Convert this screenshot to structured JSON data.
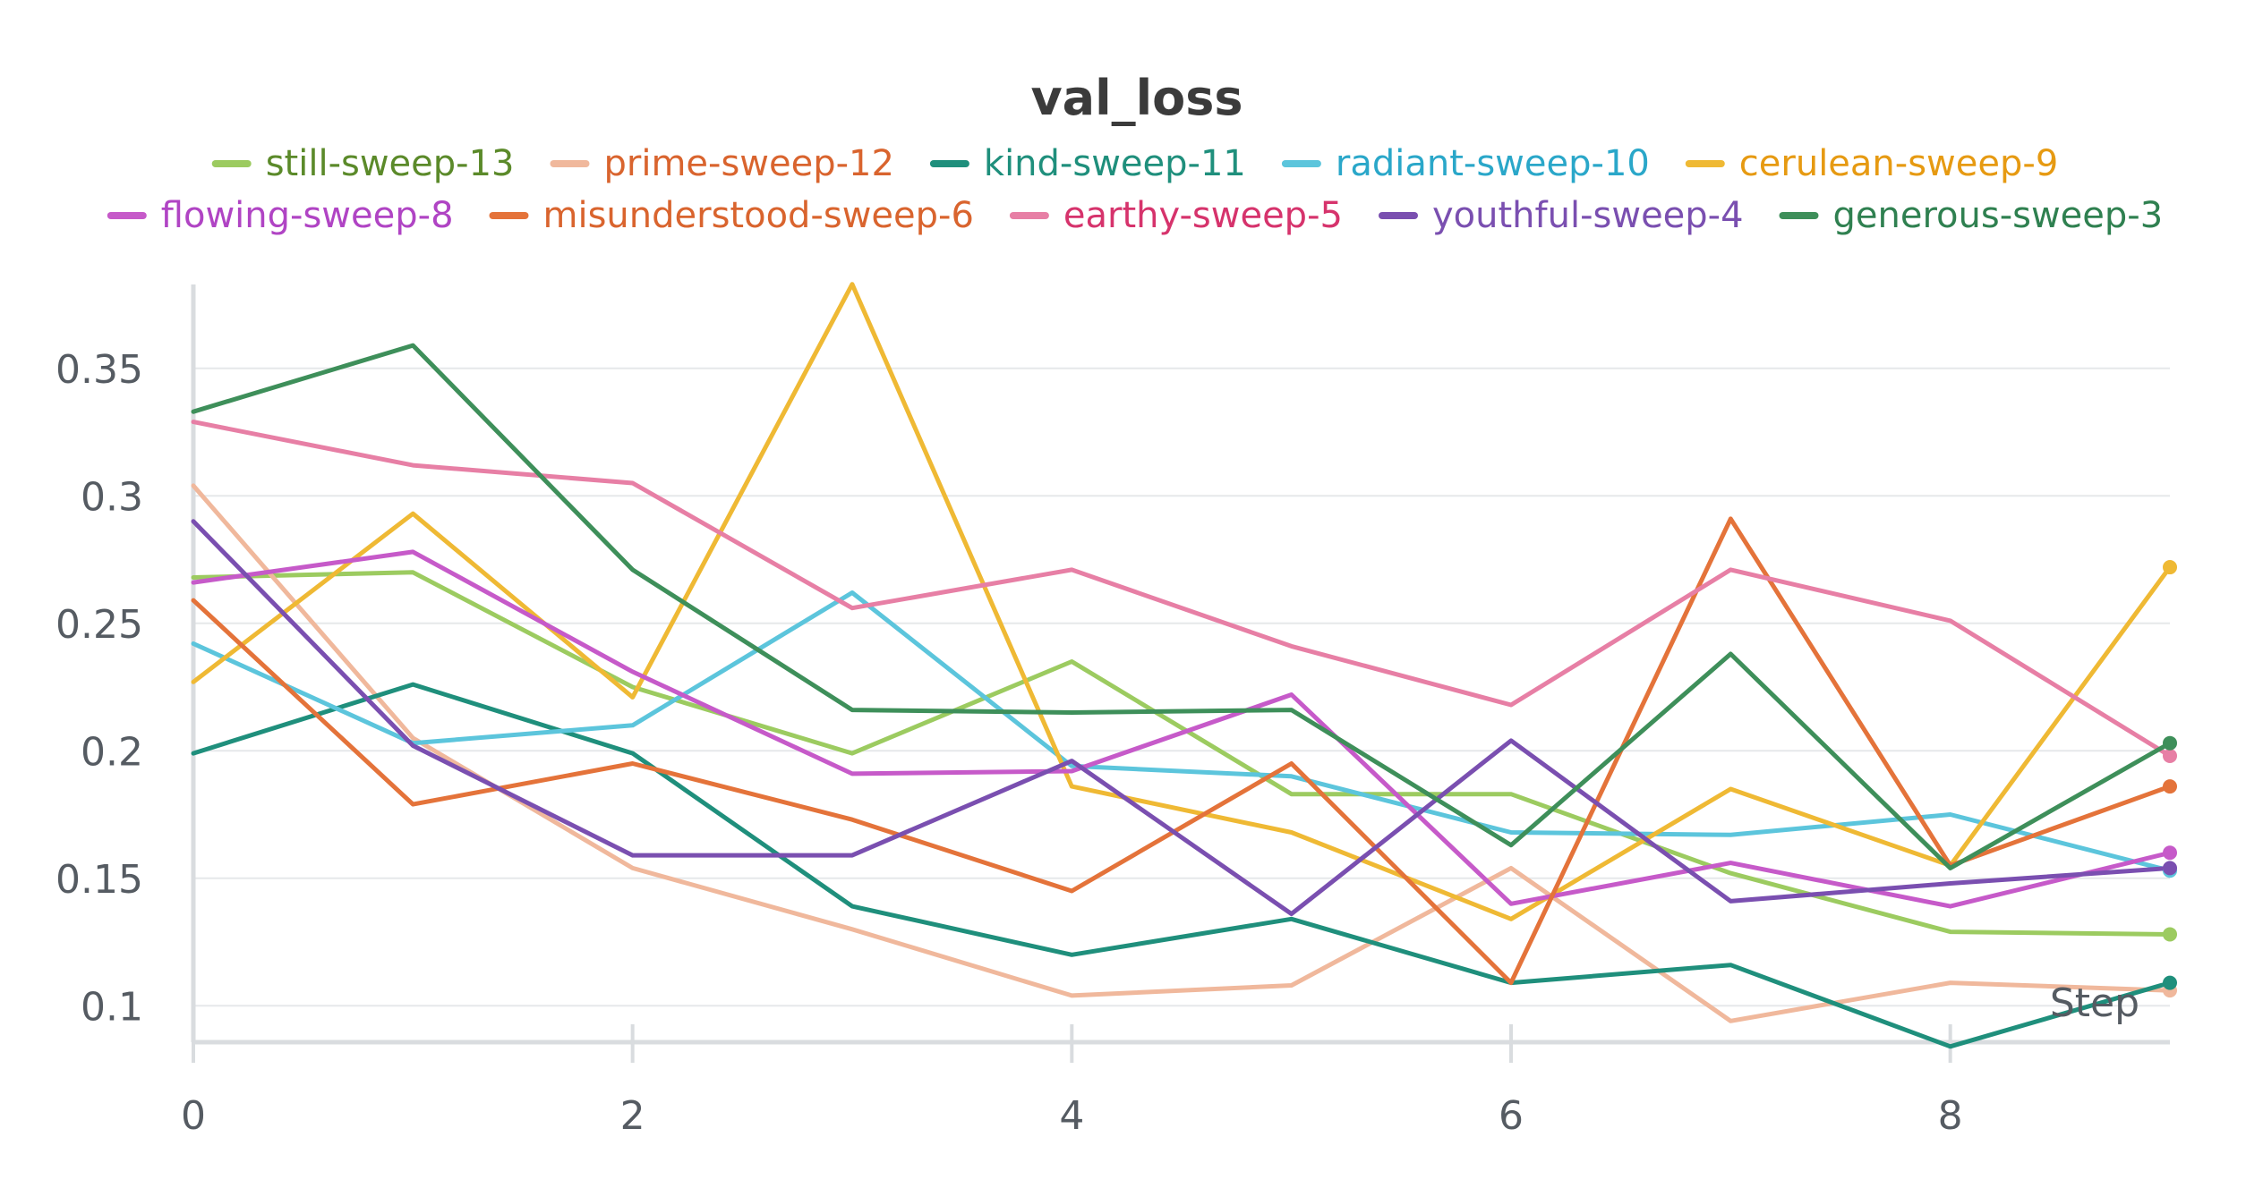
{
  "chart_data": {
    "type": "line",
    "title": "val_loss",
    "xlabel": "Step",
    "ylabel": "",
    "x": [
      0,
      1,
      2,
      3,
      4,
      5,
      6,
      7,
      8,
      9
    ],
    "xlim": [
      0,
      9
    ],
    "ylim": [
      0.085,
      0.385
    ],
    "x_ticks": [
      0,
      2,
      4,
      6,
      8
    ],
    "y_ticks": [
      0.1,
      0.15,
      0.2,
      0.25,
      0.3,
      0.35
    ],
    "y_tick_labels": [
      "0.1",
      "0.15",
      "0.2",
      "0.25",
      "0.3",
      "0.35"
    ],
    "grid": "horizontal",
    "legend_position": "top",
    "series": [
      {
        "name": "still-sweep-13",
        "color": "#9ccb60",
        "text_color": "#5b8a2a",
        "values": [
          0.268,
          0.27,
          0.225,
          0.199,
          0.235,
          0.183,
          0.183,
          0.152,
          0.129,
          0.128
        ]
      },
      {
        "name": "prime-sweep-12",
        "color": "#f0b89c",
        "text_color": "#d9642e",
        "values": [
          0.304,
          0.205,
          0.154,
          0.13,
          0.104,
          0.108,
          0.154,
          0.094,
          0.109,
          0.106
        ]
      },
      {
        "name": "kind-sweep-11",
        "color": "#1f8f7c",
        "text_color": "#1f8f7c",
        "values": [
          0.199,
          0.226,
          0.199,
          0.139,
          0.12,
          0.134,
          0.109,
          0.116,
          0.084,
          0.109
        ]
      },
      {
        "name": "radiant-sweep-10",
        "color": "#5cc5dc",
        "text_color": "#2aa7c9",
        "values": [
          0.242,
          0.203,
          0.21,
          0.262,
          0.194,
          0.19,
          0.168,
          0.167,
          0.175,
          0.153
        ]
      },
      {
        "name": "cerulean-sweep-9",
        "color": "#efb934",
        "text_color": "#e69a12",
        "values": [
          0.227,
          0.293,
          0.221,
          0.383,
          0.186,
          0.168,
          0.134,
          0.185,
          0.155,
          0.272
        ]
      },
      {
        "name": "flowing-sweep-8",
        "color": "#c65ac9",
        "text_color": "#b044c4",
        "values": [
          0.266,
          0.278,
          0.231,
          0.191,
          0.192,
          0.222,
          0.14,
          0.156,
          0.139,
          0.16
        ]
      },
      {
        "name": "misunderstood-sweep-6",
        "color": "#e4733a",
        "text_color": "#d9642e",
        "values": [
          0.259,
          0.179,
          0.195,
          0.173,
          0.145,
          0.195,
          0.109,
          0.291,
          0.155,
          0.186
        ]
      },
      {
        "name": "earthy-sweep-5",
        "color": "#e77fa5",
        "text_color": "#d6336c",
        "values": [
          0.329,
          0.312,
          0.305,
          0.256,
          0.271,
          0.241,
          0.218,
          0.271,
          0.251,
          0.198
        ]
      },
      {
        "name": "youthful-sweep-4",
        "color": "#7a4fb0",
        "text_color": "#7a4fb0",
        "values": [
          0.29,
          0.202,
          0.159,
          0.159,
          0.196,
          0.136,
          0.204,
          0.141,
          0.148,
          0.154
        ]
      },
      {
        "name": "generous-sweep-3",
        "color": "#3e8f5a",
        "text_color": "#2f8050",
        "values": [
          0.333,
          0.359,
          0.271,
          0.216,
          0.215,
          0.216,
          0.163,
          0.238,
          0.154,
          0.203
        ]
      }
    ]
  }
}
